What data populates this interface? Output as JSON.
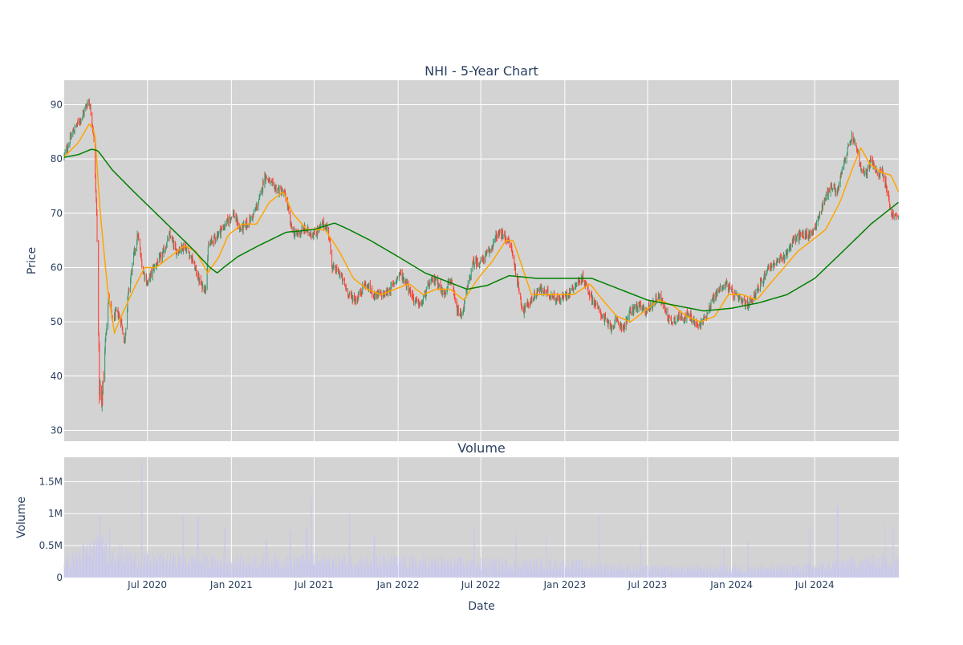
{
  "chart_data": {
    "type": "candlestick",
    "title": "NHI - 5-Year Chart",
    "price_panel": {
      "ylabel": "Price",
      "ylim": [
        28,
        94.5
      ],
      "yticks": [
        30,
        40,
        50,
        60,
        70,
        80,
        90
      ],
      "grid": true,
      "background": "#d3d3d3",
      "up_color": "#3d9970",
      "down_color": "#ff4136",
      "ma_short_color": "#ffa500",
      "ma_long_color": "#008000",
      "close_anchors": [
        [
          "2020-01-01",
          80.5
        ],
        [
          "2020-01-20",
          85
        ],
        [
          "2020-02-10",
          88
        ],
        [
          "2020-02-24",
          91
        ],
        [
          "2020-03-05",
          85
        ],
        [
          "2020-03-12",
          70
        ],
        [
          "2020-03-18",
          38
        ],
        [
          "2020-03-23",
          34
        ],
        [
          "2020-03-30",
          45
        ],
        [
          "2020-04-07",
          55
        ],
        [
          "2020-04-15",
          50
        ],
        [
          "2020-04-25",
          52
        ],
        [
          "2020-05-05",
          50
        ],
        [
          "2020-05-12",
          46
        ],
        [
          "2020-05-20",
          55
        ],
        [
          "2020-06-01",
          62
        ],
        [
          "2020-06-10",
          66
        ],
        [
          "2020-06-20",
          60
        ],
        [
          "2020-07-01",
          57
        ],
        [
          "2020-07-15",
          60
        ],
        [
          "2020-08-01",
          62
        ],
        [
          "2020-08-20",
          66
        ],
        [
          "2020-09-01",
          63
        ],
        [
          "2020-09-20",
          64
        ],
        [
          "2020-10-05",
          62
        ],
        [
          "2020-10-25",
          57
        ],
        [
          "2020-11-05",
          56
        ],
        [
          "2020-11-12",
          64
        ],
        [
          "2020-12-01",
          66
        ],
        [
          "2020-12-20",
          68
        ],
        [
          "2021-01-05",
          70
        ],
        [
          "2021-01-20",
          67
        ],
        [
          "2021-02-05",
          68
        ],
        [
          "2021-02-20",
          70
        ],
        [
          "2021-03-05",
          73
        ],
        [
          "2021-03-15",
          77
        ],
        [
          "2021-04-01",
          75
        ],
        [
          "2021-04-20",
          74
        ],
        [
          "2021-05-01",
          73
        ],
        [
          "2021-05-10",
          68
        ],
        [
          "2021-05-20",
          66
        ],
        [
          "2021-06-10",
          67
        ],
        [
          "2021-07-01",
          66
        ],
        [
          "2021-07-20",
          68
        ],
        [
          "2021-08-01",
          67
        ],
        [
          "2021-08-10",
          60
        ],
        [
          "2021-08-25",
          59
        ],
        [
          "2021-09-15",
          55
        ],
        [
          "2021-10-01",
          54
        ],
        [
          "2021-10-20",
          57
        ],
        [
          "2021-11-10",
          55
        ],
        [
          "2021-12-01",
          55
        ],
        [
          "2021-12-15",
          56
        ],
        [
          "2022-01-05",
          59
        ],
        [
          "2022-01-20",
          57
        ],
        [
          "2022-02-05",
          54
        ],
        [
          "2022-02-20",
          53
        ],
        [
          "2022-03-10",
          57
        ],
        [
          "2022-03-25",
          58
        ],
        [
          "2022-04-10",
          55
        ],
        [
          "2022-04-25",
          58
        ],
        [
          "2022-05-10",
          52
        ],
        [
          "2022-05-20",
          51
        ],
        [
          "2022-06-01",
          56
        ],
        [
          "2022-06-15",
          61
        ],
        [
          "2022-07-01",
          61
        ],
        [
          "2022-07-20",
          63
        ],
        [
          "2022-08-05",
          66
        ],
        [
          "2022-08-20",
          66
        ],
        [
          "2022-09-05",
          64
        ],
        [
          "2022-09-20",
          57
        ],
        [
          "2022-10-01",
          52
        ],
        [
          "2022-10-20",
          54
        ],
        [
          "2022-11-05",
          56
        ],
        [
          "2022-12-01",
          55
        ],
        [
          "2022-12-20",
          54
        ],
        [
          "2023-01-05",
          55
        ],
        [
          "2023-01-25",
          57
        ],
        [
          "2023-02-10",
          58
        ],
        [
          "2023-02-25",
          55
        ],
        [
          "2023-03-10",
          53
        ],
        [
          "2023-03-25",
          51
        ],
        [
          "2023-04-10",
          49
        ],
        [
          "2023-04-25",
          50
        ],
        [
          "2023-05-10",
          49
        ],
        [
          "2023-05-25",
          52
        ],
        [
          "2023-06-10",
          53
        ],
        [
          "2023-06-25",
          52
        ],
        [
          "2023-07-10",
          53
        ],
        [
          "2023-07-25",
          55
        ],
        [
          "2023-08-05",
          53
        ],
        [
          "2023-08-20",
          50
        ],
        [
          "2023-09-10",
          51
        ],
        [
          "2023-10-01",
          51
        ],
        [
          "2023-10-20",
          49
        ],
        [
          "2023-11-05",
          51
        ],
        [
          "2023-11-20",
          54
        ],
        [
          "2023-12-05",
          56
        ],
        [
          "2023-12-20",
          57
        ],
        [
          "2024-01-05",
          55
        ],
        [
          "2024-01-20",
          54
        ],
        [
          "2024-02-05",
          53
        ],
        [
          "2024-02-20",
          55
        ],
        [
          "2024-03-05",
          57
        ],
        [
          "2024-03-20",
          60
        ],
        [
          "2024-04-10",
          61
        ],
        [
          "2024-04-25",
          62
        ],
        [
          "2024-05-15",
          65
        ],
        [
          "2024-06-01",
          66
        ],
        [
          "2024-06-20",
          66
        ],
        [
          "2024-07-05",
          68
        ],
        [
          "2024-07-20",
          72
        ],
        [
          "2024-08-05",
          75
        ],
        [
          "2024-08-20",
          74
        ],
        [
          "2024-09-05",
          80
        ],
        [
          "2024-09-20",
          84
        ],
        [
          "2024-10-01",
          82
        ],
        [
          "2024-10-10",
          78
        ],
        [
          "2024-10-20",
          77
        ],
        [
          "2024-11-01",
          80
        ],
        [
          "2024-11-15",
          77
        ],
        [
          "2024-11-25",
          78
        ],
        [
          "2024-12-05",
          75
        ],
        [
          "2024-12-15",
          70
        ],
        [
          "2024-12-31",
          69
        ]
      ],
      "ma_short_anchors": [
        [
          "2020-01-01",
          80.4
        ],
        [
          "2020-02-01",
          83
        ],
        [
          "2020-02-25",
          86.5
        ],
        [
          "2020-03-08",
          85
        ],
        [
          "2020-03-20",
          70
        ],
        [
          "2020-04-05",
          56
        ],
        [
          "2020-04-20",
          48
        ],
        [
          "2020-05-05",
          51
        ],
        [
          "2020-06-01",
          56
        ],
        [
          "2020-06-25",
          60
        ],
        [
          "2020-07-20",
          60
        ],
        [
          "2020-08-20",
          62
        ],
        [
          "2020-09-20",
          64
        ],
        [
          "2020-10-15",
          63
        ],
        [
          "2020-11-10",
          59
        ],
        [
          "2020-12-05",
          62
        ],
        [
          "2020-12-25",
          66
        ],
        [
          "2021-01-25",
          68
        ],
        [
          "2021-02-25",
          68
        ],
        [
          "2021-03-25",
          72
        ],
        [
          "2021-04-25",
          74
        ],
        [
          "2021-05-15",
          70
        ],
        [
          "2021-06-15",
          67
        ],
        [
          "2021-07-25",
          67
        ],
        [
          "2021-08-25",
          63
        ],
        [
          "2021-09-25",
          58
        ],
        [
          "2021-10-25",
          56
        ],
        [
          "2021-11-25",
          55
        ],
        [
          "2021-12-25",
          56
        ],
        [
          "2022-01-25",
          57
        ],
        [
          "2022-02-25",
          55
        ],
        [
          "2022-03-25",
          56
        ],
        [
          "2022-04-25",
          56
        ],
        [
          "2022-05-25",
          54
        ],
        [
          "2022-06-25",
          58
        ],
        [
          "2022-07-25",
          61
        ],
        [
          "2022-08-25",
          65
        ],
        [
          "2022-09-10",
          65
        ],
        [
          "2022-09-30",
          60
        ],
        [
          "2022-10-20",
          55
        ],
        [
          "2022-11-20",
          55
        ],
        [
          "2022-12-20",
          55
        ],
        [
          "2023-01-20",
          55
        ],
        [
          "2023-02-25",
          57
        ],
        [
          "2023-03-25",
          54
        ],
        [
          "2023-04-25",
          51
        ],
        [
          "2023-05-25",
          50
        ],
        [
          "2023-06-25",
          52
        ],
        [
          "2023-07-25",
          54
        ],
        [
          "2023-08-25",
          53
        ],
        [
          "2023-09-25",
          51
        ],
        [
          "2023-10-25",
          50
        ],
        [
          "2023-11-25",
          51
        ],
        [
          "2023-12-25",
          55
        ],
        [
          "2024-01-25",
          55
        ],
        [
          "2024-02-25",
          54
        ],
        [
          "2024-03-25",
          57
        ],
        [
          "2024-04-25",
          60
        ],
        [
          "2024-05-25",
          63
        ],
        [
          "2024-06-25",
          65
        ],
        [
          "2024-07-25",
          67
        ],
        [
          "2024-08-25",
          72
        ],
        [
          "2024-09-25",
          79
        ],
        [
          "2024-10-10",
          82
        ],
        [
          "2024-10-30",
          79
        ],
        [
          "2024-11-25",
          77.5
        ],
        [
          "2024-12-15",
          77
        ],
        [
          "2024-12-31",
          74
        ]
      ],
      "ma_long_anchors": [
        [
          "2020-01-01",
          80.3
        ],
        [
          "2020-02-01",
          80.8
        ],
        [
          "2020-03-01",
          81.8
        ],
        [
          "2020-03-15",
          81.5
        ],
        [
          "2020-04-15",
          78
        ],
        [
          "2020-06-01",
          74
        ],
        [
          "2020-08-01",
          69
        ],
        [
          "2020-10-01",
          64
        ],
        [
          "2020-11-15",
          60
        ],
        [
          "2020-12-01",
          59
        ],
        [
          "2020-12-15",
          60
        ],
        [
          "2021-01-15",
          62
        ],
        [
          "2021-03-01",
          64
        ],
        [
          "2021-05-01",
          66.5
        ],
        [
          "2021-07-01",
          67
        ],
        [
          "2021-08-15",
          68.2
        ],
        [
          "2021-09-15",
          67
        ],
        [
          "2021-11-01",
          65
        ],
        [
          "2022-01-01",
          62
        ],
        [
          "2022-03-01",
          59
        ],
        [
          "2022-05-01",
          57
        ],
        [
          "2022-06-01",
          56
        ],
        [
          "2022-07-15",
          56.7
        ],
        [
          "2022-09-01",
          58.5
        ],
        [
          "2022-11-01",
          58
        ],
        [
          "2023-01-01",
          58
        ],
        [
          "2023-03-01",
          58
        ],
        [
          "2023-05-01",
          56
        ],
        [
          "2023-07-01",
          54
        ],
        [
          "2023-09-01",
          53
        ],
        [
          "2023-11-01",
          52
        ],
        [
          "2024-01-01",
          52.5
        ],
        [
          "2024-03-01",
          53.5
        ],
        [
          "2024-05-01",
          55
        ],
        [
          "2024-07-01",
          58
        ],
        [
          "2024-09-01",
          63
        ],
        [
          "2024-11-01",
          68
        ],
        [
          "2024-12-31",
          72
        ]
      ]
    },
    "volume_panel": {
      "title": "Volume",
      "ylabel": "Volume",
      "ylim": [
        0,
        1880000
      ],
      "yticks": [
        0,
        500000,
        1000000,
        1500000
      ],
      "ytick_labels": [
        "0",
        "0.5M",
        "1M",
        "1.5M"
      ],
      "bar_color": "#c8c8ee",
      "baseline_anchors": [
        [
          "2020-01-01",
          250000
        ],
        [
          "2020-03-15",
          550000
        ],
        [
          "2020-06-01",
          330000
        ],
        [
          "2020-12-01",
          280000
        ],
        [
          "2021-06-01",
          300000
        ],
        [
          "2022-01-01",
          280000
        ],
        [
          "2022-07-01",
          250000
        ],
        [
          "2023-01-01",
          230000
        ],
        [
          "2023-07-01",
          160000
        ],
        [
          "2024-01-01",
          160000
        ],
        [
          "2024-07-01",
          180000
        ],
        [
          "2024-09-15",
          260000
        ],
        [
          "2024-12-31",
          300000
        ]
      ],
      "spikes": [
        [
          "2020-03-20",
          980000
        ],
        [
          "2020-04-10",
          750000
        ],
        [
          "2020-06-19",
          1800000
        ],
        [
          "2020-09-18",
          980000
        ],
        [
          "2020-10-20",
          950000
        ],
        [
          "2020-12-18",
          780000
        ],
        [
          "2021-03-19",
          600000
        ],
        [
          "2021-05-10",
          720000
        ],
        [
          "2021-06-15",
          760000
        ],
        [
          "2021-06-25",
          1250000
        ],
        [
          "2021-09-17",
          1000000
        ],
        [
          "2021-11-10",
          650000
        ],
        [
          "2022-06-17",
          780000
        ],
        [
          "2022-09-16",
          680000
        ],
        [
          "2022-11-20",
          650000
        ],
        [
          "2023-03-17",
          980000
        ],
        [
          "2023-06-16",
          560000
        ],
        [
          "2023-12-15",
          490000
        ],
        [
          "2024-02-05",
          580000
        ],
        [
          "2024-06-21",
          780000
        ],
        [
          "2024-08-20",
          1120000
        ],
        [
          "2024-12-01",
          850000
        ],
        [
          "2024-12-20",
          780000
        ]
      ]
    },
    "x_axis": {
      "label": "Date",
      "range": [
        "2020-01-01",
        "2025-01-01"
      ],
      "ticks": [
        {
          "date": "2020-07-01",
          "label": "Jul 2020"
        },
        {
          "date": "2021-01-01",
          "label": "Jan 2021"
        },
        {
          "date": "2021-07-01",
          "label": "Jul 2021"
        },
        {
          "date": "2022-01-01",
          "label": "Jan 2022"
        },
        {
          "date": "2022-07-01",
          "label": "Jul 2022"
        },
        {
          "date": "2023-01-01",
          "label": "Jan 2023"
        },
        {
          "date": "2023-07-01",
          "label": "Jul 2023"
        },
        {
          "date": "2024-01-01",
          "label": "Jan 2024"
        },
        {
          "date": "2024-07-01",
          "label": "Jul 2024"
        }
      ]
    }
  }
}
